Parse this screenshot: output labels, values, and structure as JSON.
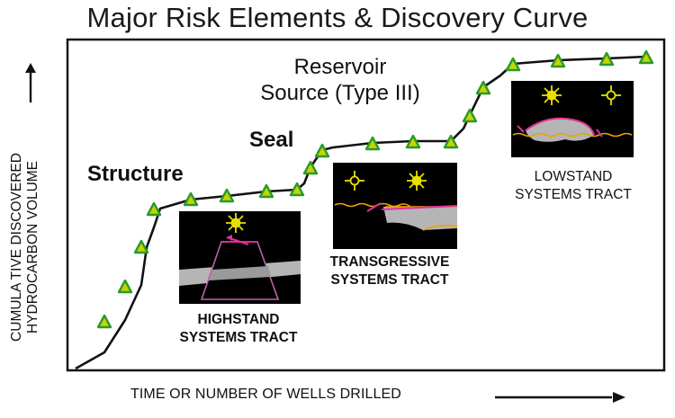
{
  "title": "Major Risk Elements & Discovery Curve",
  "y_axis_label_line1": "CUMULA  TIVE DISCOVERED",
  "y_axis_label_line2": "HYDROCARBON VOLUME",
  "x_axis_label": "TIME OR  NUMBER OF WELLS DRILLED",
  "stages": {
    "structure": "Structure",
    "seal": "Seal",
    "reservoir_line1": "Reservoir",
    "reservoir_line2": "Source (Type III)"
  },
  "panels": {
    "highstand_line1": "HIGHSTAND",
    "highstand_line2": "SYSTEMS TRACT",
    "transgressive_line1": "TRANSGRESSIVE",
    "transgressive_line2": "SYSTEMS TRACT",
    "lowstand_line1": "LOWSTAND",
    "lowstand_line2": "SYSTEMS TRACT"
  },
  "colors": {
    "curve": "#111111",
    "marker_fill": "#c8d400",
    "marker_stroke": "#2a9a2a",
    "panel_bg": "#000000",
    "sun": "#e8e000",
    "wavy_line": "#f0a000",
    "magenta": "#e0309a",
    "gray_fill": "#b5b5b5"
  }
}
